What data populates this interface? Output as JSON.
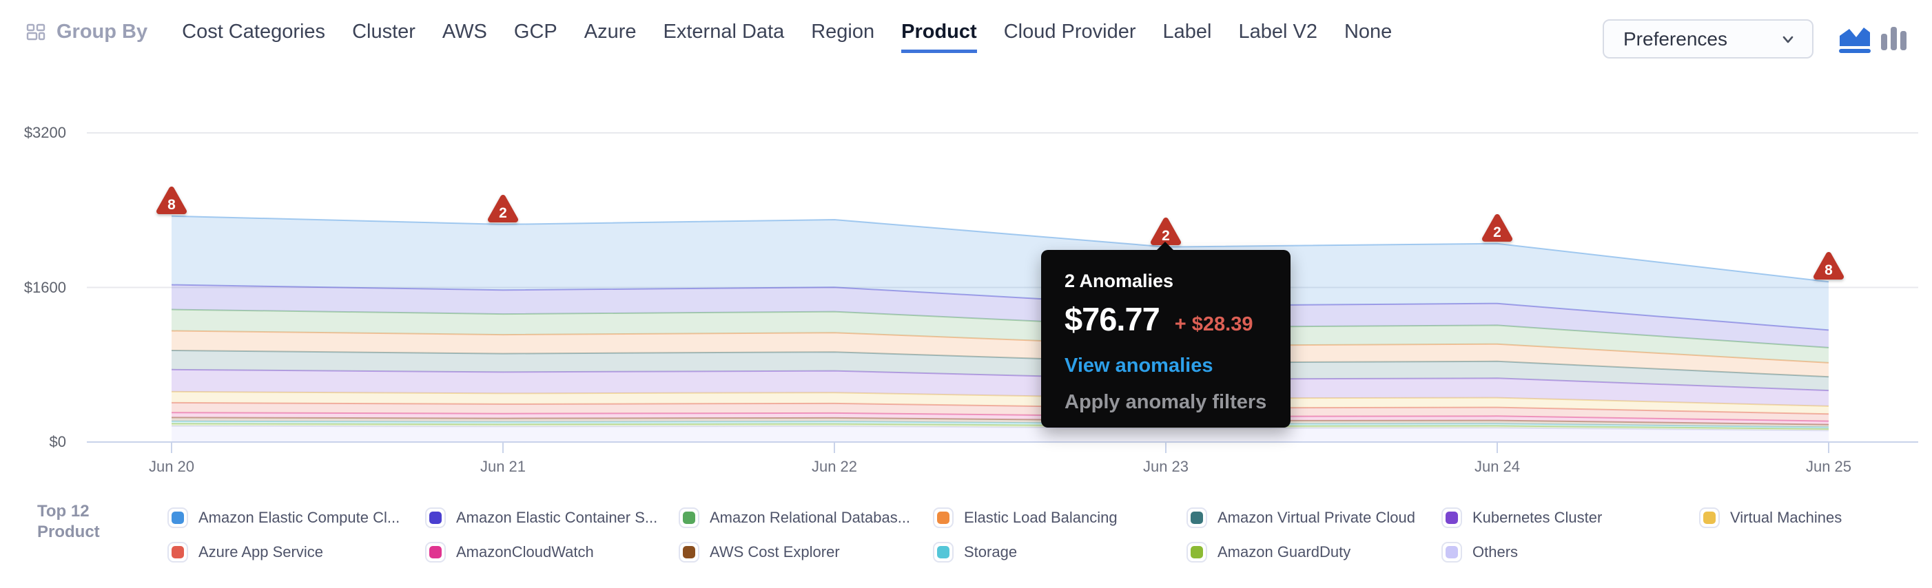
{
  "header": {
    "group_by_label": "Group By",
    "accent_color": "#3e74da",
    "tabs": [
      "Cost Categories",
      "Cluster",
      "AWS",
      "GCP",
      "Azure",
      "External Data",
      "Region",
      "Product",
      "Cloud Provider",
      "Label",
      "Label V2",
      "None"
    ],
    "active_tab": "Product",
    "preferences": {
      "label": "Preferences"
    },
    "view_toggle": {
      "active": "area",
      "area_color": "#2e6fd6",
      "bar_color": "#8d93a9"
    }
  },
  "chart": {
    "y_axis": {
      "tick_labels": [
        "$3200",
        "$1600",
        "$0"
      ],
      "tick_values": [
        3200,
        1600,
        0
      ]
    },
    "x_axis": {
      "tick_labels": [
        "Jun 20",
        "Jun 21",
        "Jun 22",
        "Jun 23",
        "Jun 24",
        "Jun 25"
      ]
    }
  },
  "chart_data": {
    "type": "area",
    "stacked": true,
    "x": [
      "Jun 20",
      "Jun 21",
      "Jun 22",
      "Jun 23",
      "Jun 24",
      "Jun 25"
    ],
    "ylim": [
      0,
      3200
    ],
    "y_ticks": [
      0,
      1600,
      3200
    ],
    "grid": true,
    "legend_position": "bottom",
    "series": [
      {
        "name": "Amazon Elastic Compute Cl...",
        "color": "#4292e0",
        "values": [
          712,
          680,
          700,
          610,
          620,
          500
        ]
      },
      {
        "name": "Amazon Elastic Container S...",
        "color": "#4a3fd0",
        "values": [
          256,
          248,
          252,
          222,
          226,
          182
        ]
      },
      {
        "name": "Amazon Relational Databas...",
        "color": "#56a85c",
        "values": [
          221,
          214,
          218,
          191,
          195,
          157
        ]
      },
      {
        "name": "Elastic Load Balancing",
        "color": "#f08a3c",
        "values": [
          203,
          196,
          200,
          176,
          179,
          145
        ]
      },
      {
        "name": "Amazon Virtual Private Cloud",
        "color": "#39767c",
        "values": [
          198,
          191,
          195,
          171,
          174,
          141
        ]
      },
      {
        "name": "Kubernetes Cluster",
        "color": "#7a45d0",
        "values": [
          229,
          221,
          225,
          198,
          202,
          163
        ]
      },
      {
        "name": "Virtual Machines",
        "color": "#edc04b",
        "values": [
          114,
          110,
          112,
          99,
          100,
          81
        ]
      },
      {
        "name": "Azure App Service",
        "color": "#e25c4e",
        "values": [
          102,
          99,
          100,
          88,
          90,
          73
        ]
      },
      {
        "name": "AmazonCloudWatch",
        "color": "#e03390",
        "values": [
          51,
          49,
          50,
          44,
          45,
          36
        ]
      },
      {
        "name": "AWS Cost Explorer",
        "color": "#8a4e1e",
        "values": [
          38,
          37,
          37,
          33,
          34,
          27
        ]
      },
      {
        "name": "Storage",
        "color": "#54c6d8",
        "values": [
          25,
          24,
          25,
          22,
          22,
          18
        ]
      },
      {
        "name": "Amazon GuardDuty",
        "color": "#8cba34",
        "values": [
          25,
          24,
          25,
          22,
          22,
          18
        ]
      },
      {
        "name": "Others",
        "color": "#c9c6f8",
        "values": [
          166,
          160,
          163,
          144,
          146,
          118
        ]
      }
    ]
  },
  "anomalies": {
    "marker_color": "#bd3528",
    "markers": [
      {
        "date": "Jun 20",
        "index": 0,
        "count": "8"
      },
      {
        "date": "Jun 21",
        "index": 1,
        "count": "2"
      },
      {
        "date": "Jun 23",
        "index": 3,
        "count": "2"
      },
      {
        "date": "Jun 24",
        "index": 4,
        "count": "2"
      },
      {
        "date": "Jun 25",
        "index": 5,
        "count": "8"
      }
    ]
  },
  "tooltip": {
    "anchor_x": "Jun 23",
    "title": "2 Anomalies",
    "amount": "$76.77",
    "delta": "+ $28.39",
    "delta_color": "#dd6055",
    "link_view": "View anomalies",
    "link_view_color": "#2da0ea",
    "link_apply": "Apply anomaly filters"
  },
  "legend": {
    "title_line1": "Top 12",
    "title_line2": "Product"
  }
}
